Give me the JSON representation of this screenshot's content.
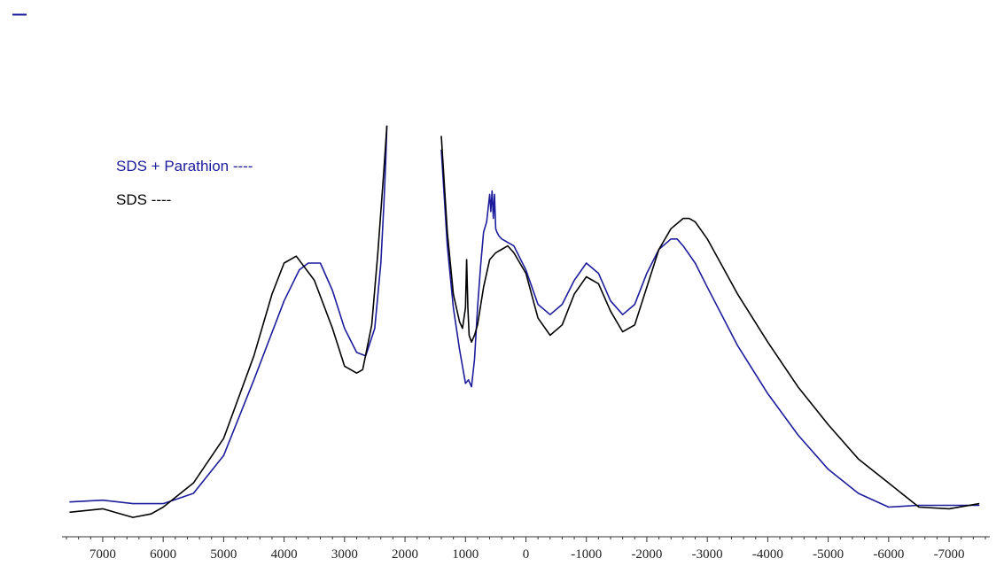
{
  "chart_data": {
    "type": "line",
    "title": "",
    "xlabel": "",
    "ylabel": "",
    "x_reversed": true,
    "xlim": [
      7600,
      -7600
    ],
    "ylim": [
      0,
      100
    ],
    "x_ticks": [
      7000,
      6000,
      5000,
      4000,
      3000,
      2000,
      1000,
      0,
      -1000,
      -2000,
      -3000,
      -4000,
      -5000,
      -6000,
      -7000
    ],
    "x_tick_labels": [
      "7000",
      "6000",
      "5000",
      "4000",
      "3000",
      "2000",
      "1000",
      "0",
      "-1000",
      "-2000",
      "-3000",
      "-4000",
      "-5000",
      "-6000",
      "-7000"
    ],
    "grid": false,
    "legend_placement": "top-left",
    "legend": [
      {
        "label": "SDS +  Parathion ----",
        "color": "#1c1c9c"
      },
      {
        "label": "SDS ----",
        "color": "#000000"
      }
    ],
    "series": [
      {
        "name": "SDS +  Parathion",
        "color": "#1c1c9c",
        "segments": [
          {
            "x": [
              7550,
              7000,
              6500,
              6000,
              5500,
              5000,
              4500,
              4000,
              3750,
              3600,
              3400,
              3200,
              3000,
              2800,
              2650,
              2500,
              2400,
              2350,
              2320,
              2300
            ],
            "y": [
              5.5,
              6,
              5,
              5,
              8,
              19,
              41,
              64,
              73,
              75,
              75,
              67,
              56,
              49,
              48,
              56,
              75,
              92,
              104,
              115
            ]
          },
          {
            "x": [
              1400,
              1300,
              1200,
              1100,
              1000,
              950,
              900,
              850,
              800,
              750,
              700,
              650,
              600,
              580,
              560,
              540,
              520,
              500,
              480,
              450,
              400,
              300,
              200,
              0,
              -200,
              -400,
              -600,
              -800,
              -1000,
              -1200,
              -1400,
              -1600,
              -1800,
              -2000,
              -2200,
              -2400,
              -2500,
              -2600,
              -2800,
              -3000,
              -3500,
              -4000,
              -4500,
              -5000,
              -5500,
              -6000,
              -6500,
              -7000,
              -7500
            ],
            "y": [
              108,
              80,
              62,
              50,
              40,
              41,
              39,
              47,
              62,
              74,
              84,
              87,
              95,
              90,
              96,
              88,
              95,
              85,
              84,
              83,
              82,
              81,
              80,
              73,
              63,
              60,
              63,
              70,
              75,
              72,
              64,
              60,
              63,
              72,
              79,
              82,
              82,
              80,
              75,
              68,
              51,
              37,
              25,
              15,
              8,
              4,
              4.5,
              4.5,
              4.5
            ]
          }
        ]
      },
      {
        "name": "SDS",
        "color": "#000000",
        "segments": [
          {
            "x": [
              7550,
              7000,
              6500,
              6200,
              6000,
              5500,
              5000,
              4500,
              4200,
              4000,
              3800,
              3500,
              3200,
              3000,
              2800,
              2700,
              2550,
              2450,
              2400,
              2350,
              2300
            ],
            "y": [
              2.5,
              3.5,
              1,
              2,
              4,
              11,
              24,
              48,
              66,
              75,
              77,
              70,
              56,
              45,
              43,
              44,
              57,
              78,
              90,
              102,
              115
            ]
          },
          {
            "x": [
              1400,
              1300,
              1200,
              1100,
              1050,
              1000,
              980,
              960,
              940,
              900,
              850,
              800,
              700,
              600,
              500,
              400,
              300,
              200,
              0,
              -200,
              -400,
              -600,
              -800,
              -1000,
              -1200,
              -1400,
              -1600,
              -1800,
              -2000,
              -2200,
              -2400,
              -2600,
              -2700,
              -2800,
              -3000,
              -3500,
              -4000,
              -4500,
              -5000,
              -5500,
              -6000,
              -6500,
              -7000,
              -7500
            ],
            "y": [
              112,
              84,
              66,
              58,
              56,
              62,
              76,
              62,
              54,
              52,
              54,
              57,
              68,
              76,
              78,
              79,
              80,
              78,
              72,
              59,
              54,
              57,
              66,
              71,
              69,
              61,
              55,
              57,
              68,
              79,
              85,
              88,
              88,
              87,
              82,
              66,
              52,
              39,
              28,
              18,
              11,
              4,
              3.5,
              5
            ]
          }
        ]
      }
    ]
  }
}
